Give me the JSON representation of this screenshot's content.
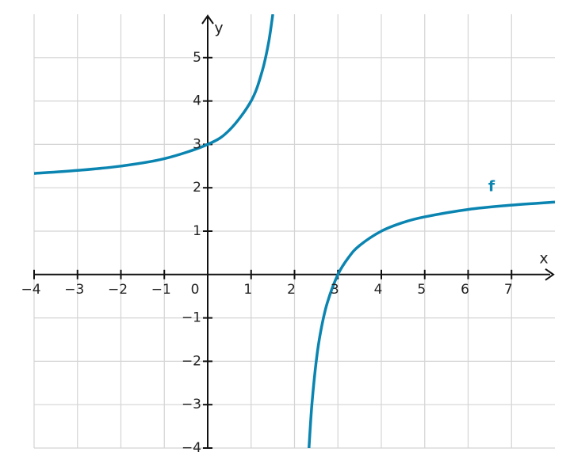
{
  "chart_data": {
    "type": "line",
    "x_label": "x",
    "y_label": "y",
    "x": [
      -4,
      -3,
      -2,
      -1,
      0,
      0.5,
      1,
      1.25,
      1.4,
      1.5,
      2,
      2.333,
      2.4,
      2.5,
      2.6,
      2.75,
      3,
      3.25,
      3.5,
      4,
      4.5,
      5,
      6,
      7,
      8
    ],
    "series": [
      {
        "name": "f",
        "color": "#0a84b0",
        "values": [
          2.33,
          2.4,
          2.5,
          2.67,
          3,
          3.33,
          4,
          4.67,
          5.33,
          6,
          null,
          -4,
          -3,
          -2,
          -1.33,
          -0.67,
          0,
          0.4,
          0.67,
          1,
          1.2,
          1.33,
          1.5,
          1.6,
          1.67
        ]
      }
    ],
    "xlim": [
      -4,
      8
    ],
    "ylim": [
      -4,
      6
    ],
    "xticks": [
      {
        "value": -4,
        "label": "−4"
      },
      {
        "value": -3,
        "label": "−3"
      },
      {
        "value": -2,
        "label": "−2"
      },
      {
        "value": -1,
        "label": "−1"
      },
      0,
      1,
      2,
      3,
      4,
      5,
      6,
      7
    ],
    "yticks": [
      {
        "value": -4,
        "label": "−4"
      },
      {
        "value": -3,
        "label": "−3"
      },
      {
        "value": -2,
        "label": "−2"
      },
      {
        "value": -1,
        "label": "−1"
      },
      1,
      2,
      3,
      4,
      5
    ],
    "grid": true
  }
}
